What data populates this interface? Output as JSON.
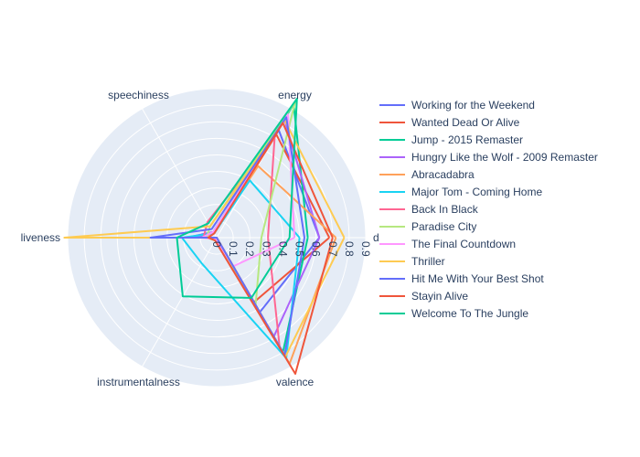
{
  "chart_data": {
    "type": "radar",
    "axes": [
      "danceability",
      "energy",
      "speechiness",
      "liveness",
      "instrumentalness",
      "valence"
    ],
    "axes_visible_labels": [
      "d",
      "energy",
      "speechiness",
      "liveness",
      "instrumentalness",
      "valence"
    ],
    "radial_range": [
      0,
      0.9
    ],
    "radial_ticks": [
      "0",
      "0.1",
      "0.2",
      "0.3",
      "0.4",
      "0.5",
      "0.6",
      "0.7",
      "0.8",
      "0.9"
    ],
    "grid": true,
    "legend_position": "right",
    "series": [
      {
        "name": "Working for the Weekend",
        "color": "#636efa",
        "values": [
          0.62,
          0.75,
          0.04,
          0.18,
          0.0,
          0.52
        ]
      },
      {
        "name": "Wanted Dead Or Alive",
        "color": "#EF553B",
        "values": [
          0.68,
          0.72,
          0.03,
          0.11,
          0.0,
          0.45
        ]
      },
      {
        "name": "Jump - 2015 Remaster",
        "color": "#00cc96",
        "values": [
          0.55,
          0.93,
          0.04,
          0.11,
          0.0,
          0.8
        ]
      },
      {
        "name": "Hungry Like the Wolf - 2009 Remaster",
        "color": "#ab63fa",
        "values": [
          0.62,
          0.82,
          0.04,
          0.13,
          0.0,
          0.69
        ]
      },
      {
        "name": "Abracadabra",
        "color": "#FFA15A",
        "values": [
          0.72,
          0.5,
          0.03,
          0.09,
          0.0,
          0.88
        ]
      },
      {
        "name": "Major Tom - Coming Home",
        "color": "#19d3f3",
        "values": [
          0.5,
          0.4,
          0.03,
          0.21,
          0.18,
          0.84
        ]
      },
      {
        "name": "Back In Black",
        "color": "#FF6692",
        "values": [
          0.31,
          0.7,
          0.11,
          0.08,
          0.0,
          0.76
        ]
      },
      {
        "name": "Paradise City",
        "color": "#B6E880",
        "values": [
          0.27,
          0.95,
          0.08,
          0.06,
          0.02,
          0.47
        ]
      },
      {
        "name": "The Final Countdown",
        "color": "#FF97FF",
        "values": [
          0.47,
          0.86,
          0.04,
          0.09,
          0.01,
          0.2
        ]
      },
      {
        "name": "Thriller",
        "color": "#FECB52",
        "values": [
          0.77,
          0.82,
          0.08,
          0.92,
          0.0,
          0.83
        ]
      },
      {
        "name": "Hit Me With Your Best Shot",
        "color": "#636efa",
        "values": [
          0.53,
          0.84,
          0.06,
          0.4,
          0.0,
          0.82
        ]
      },
      {
        "name": "Stayin Alive",
        "color": "#EF553B",
        "values": [
          0.7,
          0.8,
          0.03,
          0.05,
          0.02,
          0.95
        ]
      },
      {
        "name": "Welcome To The Jungle",
        "color": "#00cc96",
        "values": [
          0.44,
          0.97,
          0.1,
          0.24,
          0.41,
          0.42
        ]
      }
    ]
  }
}
